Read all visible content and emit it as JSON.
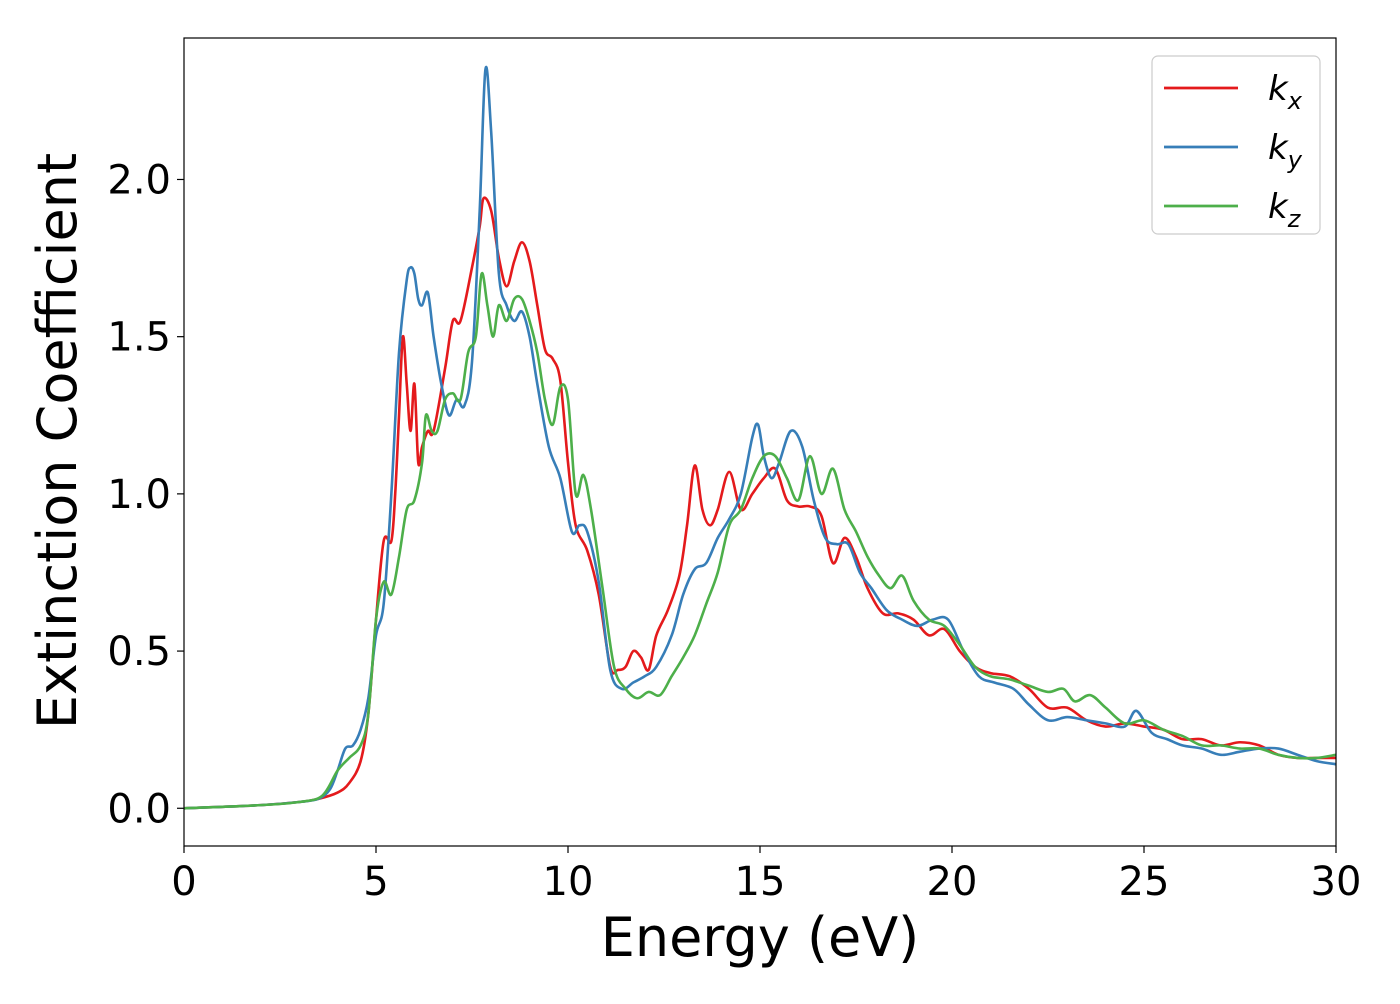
{
  "chart_data": {
    "type": "line",
    "title": "",
    "xlabel": "Energy (eV)",
    "ylabel": "Extinction Coefficient",
    "xlim": [
      0,
      30
    ],
    "ylim": [
      -0.12,
      2.45
    ],
    "xticks": [
      0,
      5,
      10,
      15,
      20,
      25,
      30
    ],
    "xtick_labels": [
      "0",
      "5",
      "10",
      "15",
      "20",
      "25",
      "30"
    ],
    "yticks": [
      0.0,
      0.5,
      1.0,
      1.5,
      2.0
    ],
    "ytick_labels": [
      "0.0",
      "0.5",
      "1.0",
      "1.5",
      "2.0"
    ],
    "grid": false,
    "legend_position": "top-right",
    "series": [
      {
        "name": "kx",
        "legend_base": "k",
        "legend_sub": "x",
        "color": "#e41a1c",
        "x": [
          0,
          2,
          3,
          3.5,
          4,
          4.3,
          4.6,
          4.8,
          5.0,
          5.2,
          5.4,
          5.5,
          5.6,
          5.7,
          5.8,
          5.9,
          6.0,
          6.1,
          6.2,
          6.35,
          6.5,
          6.8,
          7.0,
          7.2,
          7.5,
          7.7,
          7.8,
          8.0,
          8.2,
          8.4,
          8.6,
          8.8,
          9.0,
          9.2,
          9.4,
          9.6,
          9.8,
          10.0,
          10.2,
          10.5,
          10.8,
          11.1,
          11.3,
          11.5,
          11.7,
          11.9,
          12.1,
          12.3,
          12.6,
          12.9,
          13.1,
          13.3,
          13.5,
          13.7,
          13.9,
          14.2,
          14.5,
          14.8,
          15.1,
          15.4,
          15.7,
          16.0,
          16.3,
          16.6,
          16.9,
          17.2,
          17.5,
          17.8,
          18.2,
          18.6,
          19.0,
          19.4,
          19.8,
          20.2,
          20.6,
          21.0,
          21.5,
          22.0,
          22.5,
          23.0,
          23.5,
          24.0,
          24.5,
          25.0,
          25.5,
          26.0,
          26.5,
          27.0,
          27.5,
          28.0,
          28.5,
          29.0,
          29.5,
          30.0
        ],
        "values": [
          0.0,
          0.01,
          0.02,
          0.03,
          0.05,
          0.08,
          0.15,
          0.3,
          0.6,
          0.85,
          0.85,
          1.0,
          1.25,
          1.5,
          1.35,
          1.2,
          1.35,
          1.1,
          1.15,
          1.2,
          1.2,
          1.4,
          1.55,
          1.55,
          1.72,
          1.85,
          1.94,
          1.9,
          1.75,
          1.66,
          1.74,
          1.8,
          1.74,
          1.6,
          1.46,
          1.43,
          1.36,
          1.1,
          0.9,
          0.82,
          0.68,
          0.45,
          0.44,
          0.45,
          0.5,
          0.48,
          0.44,
          0.55,
          0.63,
          0.74,
          0.9,
          1.09,
          0.95,
          0.9,
          0.95,
          1.07,
          0.95,
          1.0,
          1.05,
          1.08,
          0.98,
          0.96,
          0.96,
          0.93,
          0.78,
          0.86,
          0.8,
          0.7,
          0.62,
          0.62,
          0.6,
          0.55,
          0.57,
          0.5,
          0.45,
          0.43,
          0.42,
          0.38,
          0.32,
          0.32,
          0.28,
          0.26,
          0.27,
          0.26,
          0.25,
          0.22,
          0.22,
          0.2,
          0.21,
          0.2,
          0.17,
          0.16,
          0.16,
          0.16
        ]
      },
      {
        "name": "ky",
        "legend_base": "k",
        "legend_sub": "y",
        "color": "#377eb8",
        "x": [
          0,
          2,
          3,
          3.5,
          3.8,
          4.0,
          4.2,
          4.4,
          4.6,
          4.8,
          5.0,
          5.2,
          5.4,
          5.6,
          5.8,
          5.9,
          6.0,
          6.1,
          6.2,
          6.35,
          6.5,
          6.7,
          6.9,
          7.1,
          7.3,
          7.5,
          7.7,
          7.85,
          8.0,
          8.2,
          8.4,
          8.6,
          8.8,
          9.0,
          9.2,
          9.5,
          9.8,
          10.1,
          10.3,
          10.5,
          10.8,
          11.1,
          11.4,
          11.7,
          12.0,
          12.3,
          12.7,
          13.0,
          13.3,
          13.6,
          13.9,
          14.2,
          14.5,
          14.8,
          14.95,
          15.1,
          15.3,
          15.5,
          15.8,
          16.1,
          16.4,
          16.7,
          17.0,
          17.3,
          17.6,
          17.9,
          18.3,
          18.7,
          19.1,
          19.5,
          19.9,
          20.3,
          20.7,
          21.1,
          21.6,
          22.0,
          22.5,
          23.0,
          23.5,
          24.0,
          24.5,
          24.8,
          25.2,
          25.6,
          26.0,
          26.5,
          27.0,
          27.5,
          28.0,
          28.5,
          29.0,
          29.5,
          30.0
        ],
        "values": [
          0.0,
          0.01,
          0.02,
          0.03,
          0.06,
          0.12,
          0.19,
          0.2,
          0.25,
          0.35,
          0.55,
          0.65,
          1.0,
          1.45,
          1.68,
          1.72,
          1.7,
          1.62,
          1.6,
          1.64,
          1.5,
          1.35,
          1.25,
          1.3,
          1.28,
          1.42,
          1.9,
          2.35,
          2.15,
          1.7,
          1.6,
          1.55,
          1.58,
          1.5,
          1.35,
          1.15,
          1.05,
          0.88,
          0.9,
          0.88,
          0.72,
          0.44,
          0.38,
          0.4,
          0.42,
          0.45,
          0.55,
          0.68,
          0.76,
          0.78,
          0.86,
          0.92,
          1.0,
          1.18,
          1.22,
          1.12,
          1.05,
          1.1,
          1.2,
          1.15,
          0.98,
          0.86,
          0.84,
          0.84,
          0.75,
          0.7,
          0.63,
          0.6,
          0.58,
          0.6,
          0.6,
          0.5,
          0.42,
          0.4,
          0.38,
          0.33,
          0.28,
          0.29,
          0.28,
          0.27,
          0.26,
          0.31,
          0.24,
          0.22,
          0.2,
          0.19,
          0.17,
          0.18,
          0.19,
          0.19,
          0.17,
          0.15,
          0.14
        ]
      },
      {
        "name": "kz",
        "legend_base": "k",
        "legend_sub": "z",
        "color": "#4daf4a",
        "x": [
          0,
          2,
          3,
          3.6,
          4.0,
          4.3,
          4.6,
          4.8,
          5.0,
          5.2,
          5.4,
          5.6,
          5.8,
          6.0,
          6.2,
          6.3,
          6.45,
          6.6,
          6.8,
          7.0,
          7.2,
          7.4,
          7.6,
          7.75,
          7.9,
          8.05,
          8.2,
          8.4,
          8.6,
          8.8,
          9.0,
          9.2,
          9.4,
          9.6,
          9.8,
          10.0,
          10.2,
          10.4,
          10.6,
          10.9,
          11.2,
          11.5,
          11.8,
          12.1,
          12.4,
          12.7,
          13.0,
          13.3,
          13.6,
          13.9,
          14.2,
          14.5,
          14.8,
          15.1,
          15.4,
          15.7,
          16.0,
          16.3,
          16.6,
          16.9,
          17.2,
          17.5,
          17.8,
          18.1,
          18.4,
          18.7,
          19.0,
          19.4,
          19.8,
          20.2,
          20.6,
          21.0,
          21.5,
          22.0,
          22.5,
          22.9,
          23.2,
          23.6,
          24.0,
          24.5,
          25.0,
          25.5,
          26.0,
          26.5,
          27.0,
          27.5,
          28.0,
          28.5,
          29.0,
          29.5,
          30.0
        ],
        "values": [
          0.0,
          0.01,
          0.02,
          0.04,
          0.12,
          0.16,
          0.2,
          0.3,
          0.6,
          0.72,
          0.68,
          0.8,
          0.95,
          0.98,
          1.1,
          1.25,
          1.2,
          1.2,
          1.3,
          1.32,
          1.3,
          1.45,
          1.5,
          1.7,
          1.6,
          1.5,
          1.6,
          1.55,
          1.62,
          1.62,
          1.55,
          1.45,
          1.3,
          1.22,
          1.34,
          1.3,
          1.0,
          1.06,
          0.95,
          0.7,
          0.45,
          0.38,
          0.35,
          0.37,
          0.36,
          0.42,
          0.48,
          0.55,
          0.65,
          0.75,
          0.9,
          0.95,
          1.05,
          1.12,
          1.12,
          1.05,
          0.98,
          1.12,
          1.0,
          1.08,
          0.95,
          0.88,
          0.8,
          0.74,
          0.7,
          0.74,
          0.66,
          0.6,
          0.58,
          0.52,
          0.45,
          0.42,
          0.41,
          0.39,
          0.37,
          0.38,
          0.34,
          0.36,
          0.32,
          0.27,
          0.28,
          0.25,
          0.23,
          0.2,
          0.2,
          0.19,
          0.19,
          0.17,
          0.16,
          0.16,
          0.17
        ]
      }
    ]
  }
}
